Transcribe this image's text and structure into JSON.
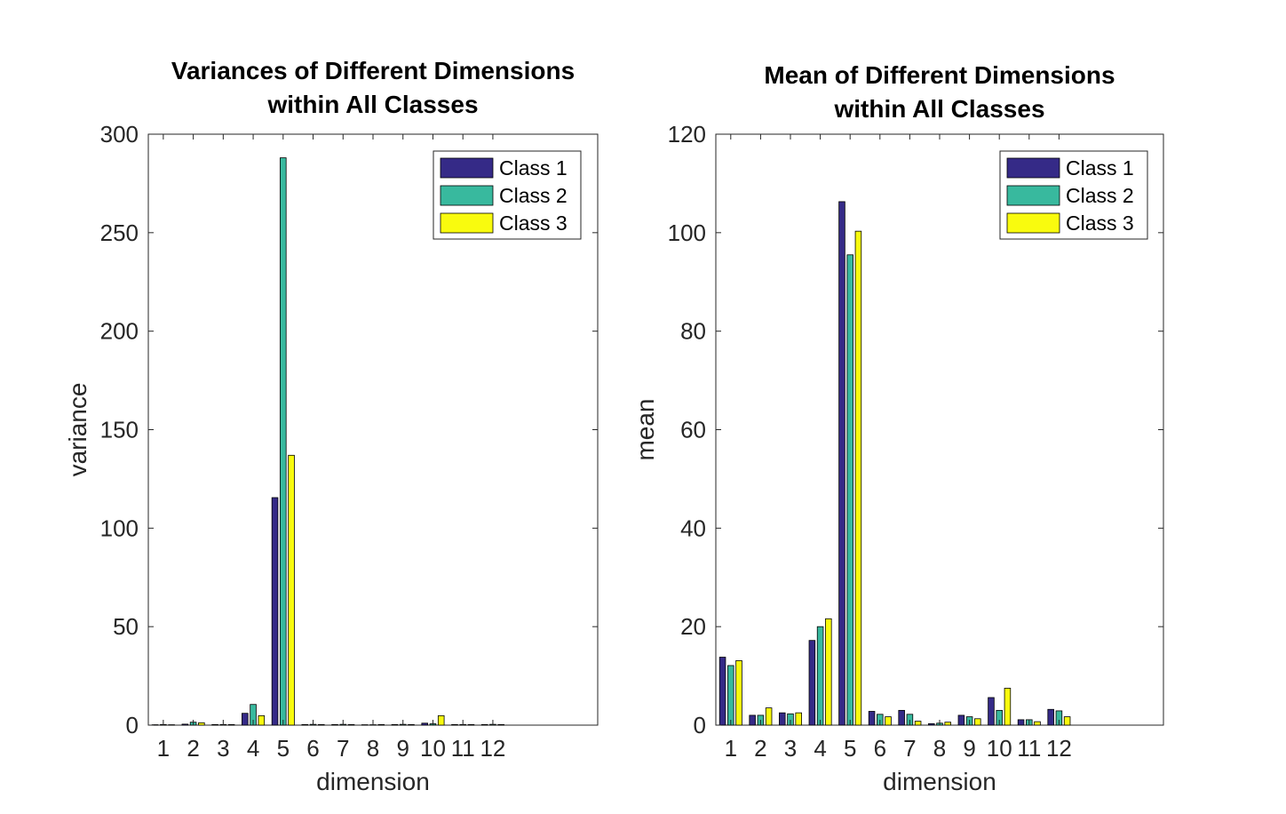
{
  "chart_data": [
    {
      "type": "bar",
      "title": [
        "Variances of Different Dimensions",
        "within All Classes"
      ],
      "xlabel": "dimension",
      "ylabel": "variance",
      "categories": [
        "1",
        "2",
        "3",
        "4",
        "5",
        "6",
        "7",
        "8",
        "9",
        "10",
        "11",
        "12"
      ],
      "xlim": [
        0.5,
        15.5
      ],
      "ylim": [
        0,
        300
      ],
      "yticks": [
        0,
        50,
        100,
        150,
        200,
        250,
        300
      ],
      "grid": false,
      "legend_position": "top-right",
      "series": [
        {
          "name": "Class 1",
          "color": "#352a87",
          "values": [
            0.2,
            0.5,
            0.3,
            6.0,
            115.5,
            0.3,
            0.3,
            0.2,
            0.3,
            1.0,
            0.3,
            0.3
          ]
        },
        {
          "name": "Class 2",
          "color": "#38b99e",
          "values": [
            0.3,
            1.5,
            0.3,
            10.5,
            288.0,
            0.4,
            0.4,
            0.2,
            0.4,
            0.7,
            0.3,
            0.4
          ]
        },
        {
          "name": "Class 3",
          "color": "#f9fb0e",
          "values": [
            0.2,
            1.2,
            0.3,
            4.8,
            137.0,
            0.3,
            0.3,
            0.3,
            0.3,
            4.8,
            0.3,
            0.3
          ]
        }
      ]
    },
    {
      "type": "bar",
      "title": [
        "Mean of Different Dimensions",
        "within All Classes"
      ],
      "xlabel": "dimension",
      "ylabel": "mean",
      "categories": [
        "1",
        "2",
        "3",
        "4",
        "5",
        "6",
        "7",
        "8",
        "9",
        "10",
        "11",
        "12"
      ],
      "xlim": [
        0.5,
        15.5
      ],
      "ylim": [
        0,
        120
      ],
      "yticks": [
        0,
        20,
        40,
        60,
        80,
        100,
        120
      ],
      "grid": false,
      "legend_position": "top-right",
      "series": [
        {
          "name": "Class 1",
          "color": "#352a87",
          "values": [
            13.8,
            2.0,
            2.5,
            17.2,
            106.3,
            2.8,
            3.0,
            0.3,
            2.0,
            5.6,
            1.1,
            3.2
          ]
        },
        {
          "name": "Class 2",
          "color": "#38b99e",
          "values": [
            12.1,
            2.0,
            2.3,
            20.0,
            95.5,
            2.2,
            2.2,
            0.4,
            1.7,
            3.0,
            1.1,
            2.9
          ]
        },
        {
          "name": "Class 3",
          "color": "#f9fb0e",
          "values": [
            13.1,
            3.5,
            2.5,
            21.6,
            100.3,
            1.7,
            0.8,
            0.6,
            1.3,
            7.5,
            0.7,
            1.7
          ]
        }
      ]
    }
  ]
}
